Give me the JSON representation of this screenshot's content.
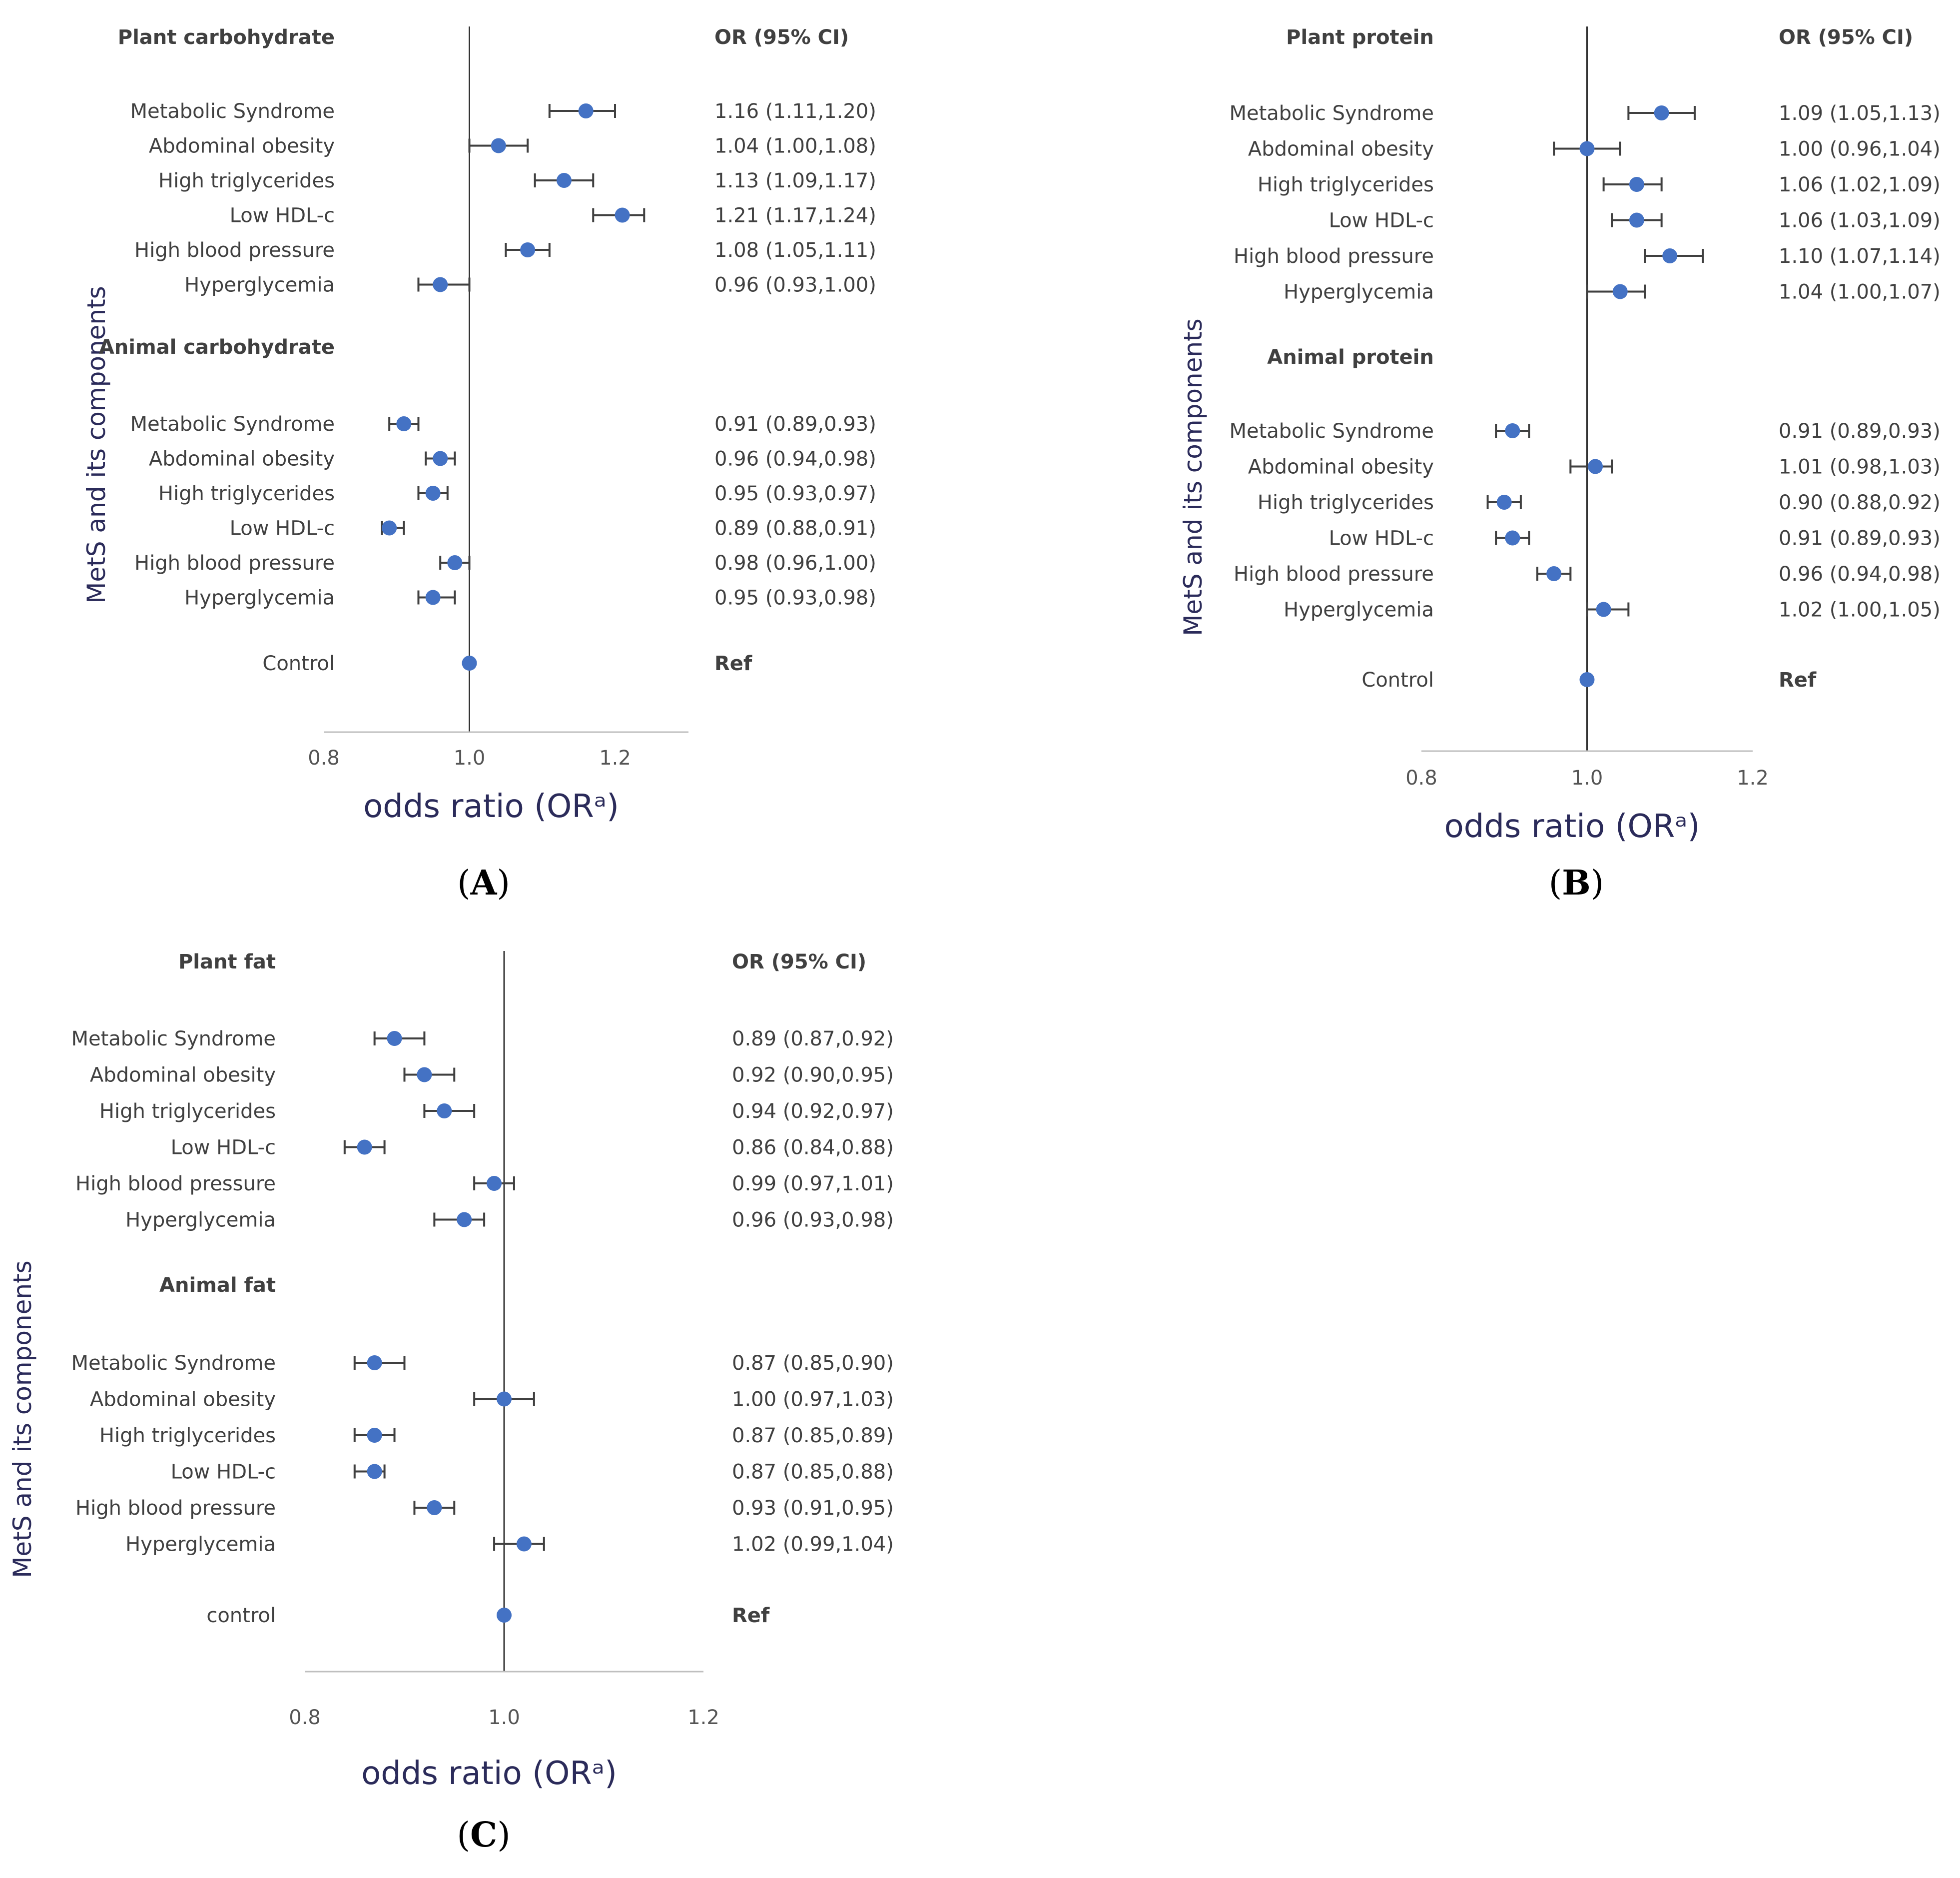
{
  "chart_data": [
    {
      "type": "forest",
      "panel": "A",
      "caption_letter": "A",
      "xlabel": "odds ratio (ORᵃ)",
      "ylabel": "MetS and its components",
      "or_header": "OR (95% CI)",
      "xlim": [
        0.8,
        1.3
      ],
      "xticks": [
        "0.8",
        "1.0",
        "1.2"
      ],
      "reference_value": 1.0,
      "groups": [
        {
          "name": "Plant carbohydrate",
          "rows": [
            {
              "label": "Metabolic Syndrome",
              "or": 1.16,
              "lo": 1.11,
              "hi": 1.2,
              "text": "1.16 (1.11,1.20)"
            },
            {
              "label": "Abdominal obesity",
              "or": 1.04,
              "lo": 1.0,
              "hi": 1.08,
              "text": "1.04 (1.00,1.08)"
            },
            {
              "label": "High triglycerides",
              "or": 1.13,
              "lo": 1.09,
              "hi": 1.17,
              "text": "1.13 (1.09,1.17)"
            },
            {
              "label": "Low HDL-c",
              "or": 1.21,
              "lo": 1.17,
              "hi": 1.24,
              "text": "1.21 (1.17,1.24)"
            },
            {
              "label": "High blood pressure",
              "or": 1.08,
              "lo": 1.05,
              "hi": 1.11,
              "text": "1.08 (1.05,1.11)"
            },
            {
              "label": "Hyperglycemia",
              "or": 0.96,
              "lo": 0.93,
              "hi": 1.0,
              "text": "0.96 (0.93,1.00)"
            }
          ]
        },
        {
          "name": "Animal carbohydrate",
          "rows": [
            {
              "label": "Metabolic Syndrome",
              "or": 0.91,
              "lo": 0.89,
              "hi": 0.93,
              "text": "0.91 (0.89,0.93)"
            },
            {
              "label": "Abdominal obesity",
              "or": 0.96,
              "lo": 0.94,
              "hi": 0.98,
              "text": "0.96 (0.94,0.98)"
            },
            {
              "label": "High triglycerides",
              "or": 0.95,
              "lo": 0.93,
              "hi": 0.97,
              "text": "0.95 (0.93,0.97)"
            },
            {
              "label": "Low HDL-c",
              "or": 0.89,
              "lo": 0.88,
              "hi": 0.91,
              "text": "0.89 (0.88,0.91)"
            },
            {
              "label": "High blood pressure",
              "or": 0.98,
              "lo": 0.96,
              "hi": 1.0,
              "text": "0.98 (0.96,1.00)"
            },
            {
              "label": "Hyperglycemia",
              "or": 0.95,
              "lo": 0.93,
              "hi": 0.98,
              "text": "0.95 (0.93,0.98)"
            }
          ]
        }
      ],
      "control": {
        "label": "Control",
        "or": 1.0,
        "text": "Ref"
      }
    },
    {
      "type": "forest",
      "panel": "B",
      "caption_letter": "B",
      "xlabel": "odds ratio (ORᵃ)",
      "ylabel": "MetS and its components",
      "or_header": "OR (95% CI)",
      "xlim": [
        0.8,
        1.2
      ],
      "xticks": [
        "0.8",
        "1.0",
        "1.2"
      ],
      "reference_value": 1.0,
      "groups": [
        {
          "name": "Plant protein",
          "rows": [
            {
              "label": "Metabolic Syndrome",
              "or": 1.09,
              "lo": 1.05,
              "hi": 1.13,
              "text": "1.09 (1.05,1.13)"
            },
            {
              "label": "Abdominal obesity",
              "or": 1.0,
              "lo": 0.96,
              "hi": 1.04,
              "text": "1.00 (0.96,1.04)"
            },
            {
              "label": "High triglycerides",
              "or": 1.06,
              "lo": 1.02,
              "hi": 1.09,
              "text": "1.06 (1.02,1.09)"
            },
            {
              "label": "Low HDL-c",
              "or": 1.06,
              "lo": 1.03,
              "hi": 1.09,
              "text": "1.06 (1.03,1.09)"
            },
            {
              "label": "High blood pressure",
              "or": 1.1,
              "lo": 1.07,
              "hi": 1.14,
              "text": "1.10 (1.07,1.14)"
            },
            {
              "label": "Hyperglycemia",
              "or": 1.04,
              "lo": 1.0,
              "hi": 1.07,
              "text": "1.04 (1.00,1.07)"
            }
          ]
        },
        {
          "name": "Animal protein",
          "rows": [
            {
              "label": "Metabolic Syndrome",
              "or": 0.91,
              "lo": 0.89,
              "hi": 0.93,
              "text": "0.91 (0.89,0.93)"
            },
            {
              "label": "Abdominal obesity",
              "or": 1.01,
              "lo": 0.98,
              "hi": 1.03,
              "text": "1.01 (0.98,1.03)"
            },
            {
              "label": "High triglycerides",
              "or": 0.9,
              "lo": 0.88,
              "hi": 0.92,
              "text": "0.90 (0.88,0.92)"
            },
            {
              "label": "Low HDL-c",
              "or": 0.91,
              "lo": 0.89,
              "hi": 0.93,
              "text": "0.91 (0.89,0.93)"
            },
            {
              "label": "High blood pressure",
              "or": 0.96,
              "lo": 0.94,
              "hi": 0.98,
              "text": "0.96 (0.94,0.98)"
            },
            {
              "label": "Hyperglycemia",
              "or": 1.02,
              "lo": 1.0,
              "hi": 1.05,
              "text": "1.02 (1.00,1.05)"
            }
          ]
        }
      ],
      "control": {
        "label": "Control",
        "or": 1.0,
        "text": "Ref"
      }
    },
    {
      "type": "forest",
      "panel": "C",
      "caption_letter": "C",
      "xlabel": "odds ratio (ORᵃ)",
      "ylabel": "MetS and its components",
      "or_header": "OR (95% CI)",
      "xlim": [
        0.8,
        1.2
      ],
      "xticks": [
        "0.8",
        "1.0",
        "1.2"
      ],
      "reference_value": 1.0,
      "groups": [
        {
          "name": "Plant fat",
          "rows": [
            {
              "label": "Metabolic Syndrome",
              "or": 0.89,
              "lo": 0.87,
              "hi": 0.92,
              "text": "0.89 (0.87,0.92)"
            },
            {
              "label": "Abdominal obesity",
              "or": 0.92,
              "lo": 0.9,
              "hi": 0.95,
              "text": "0.92 (0.90,0.95)"
            },
            {
              "label": "High triglycerides",
              "or": 0.94,
              "lo": 0.92,
              "hi": 0.97,
              "text": "0.94 (0.92,0.97)"
            },
            {
              "label": "Low HDL-c",
              "or": 0.86,
              "lo": 0.84,
              "hi": 0.88,
              "text": "0.86 (0.84,0.88)"
            },
            {
              "label": "High blood pressure",
              "or": 0.99,
              "lo": 0.97,
              "hi": 1.01,
              "text": "0.99 (0.97,1.01)"
            },
            {
              "label": "Hyperglycemia",
              "or": 0.96,
              "lo": 0.93,
              "hi": 0.98,
              "text": "0.96 (0.93,0.98)"
            }
          ]
        },
        {
          "name": "Animal fat",
          "rows": [
            {
              "label": "Metabolic Syndrome",
              "or": 0.87,
              "lo": 0.85,
              "hi": 0.9,
              "text": "0.87 (0.85,0.90)"
            },
            {
              "label": "Abdominal obesity",
              "or": 1.0,
              "lo": 0.97,
              "hi": 1.03,
              "text": "1.00 (0.97,1.03)"
            },
            {
              "label": "High triglycerides",
              "or": 0.87,
              "lo": 0.85,
              "hi": 0.89,
              "text": "0.87 (0.85,0.89)"
            },
            {
              "label": "Low HDL-c",
              "or": 0.87,
              "lo": 0.85,
              "hi": 0.88,
              "text": "0.87 (0.85,0.88)"
            },
            {
              "label": "High blood pressure",
              "or": 0.93,
              "lo": 0.91,
              "hi": 0.95,
              "text": "0.93 (0.91,0.95)"
            },
            {
              "label": "Hyperglycemia",
              "or": 1.02,
              "lo": 0.99,
              "hi": 1.04,
              "text": "1.02 (0.99,1.04)"
            }
          ]
        }
      ],
      "control": {
        "label": "control",
        "or": 1.0,
        "text": "Ref"
      }
    }
  ],
  "colors": {
    "point": "#4472c4",
    "ci_line": "#404040",
    "axis": "#333333",
    "label_text": "#404040",
    "axis_title": "#2b2b5a"
  }
}
